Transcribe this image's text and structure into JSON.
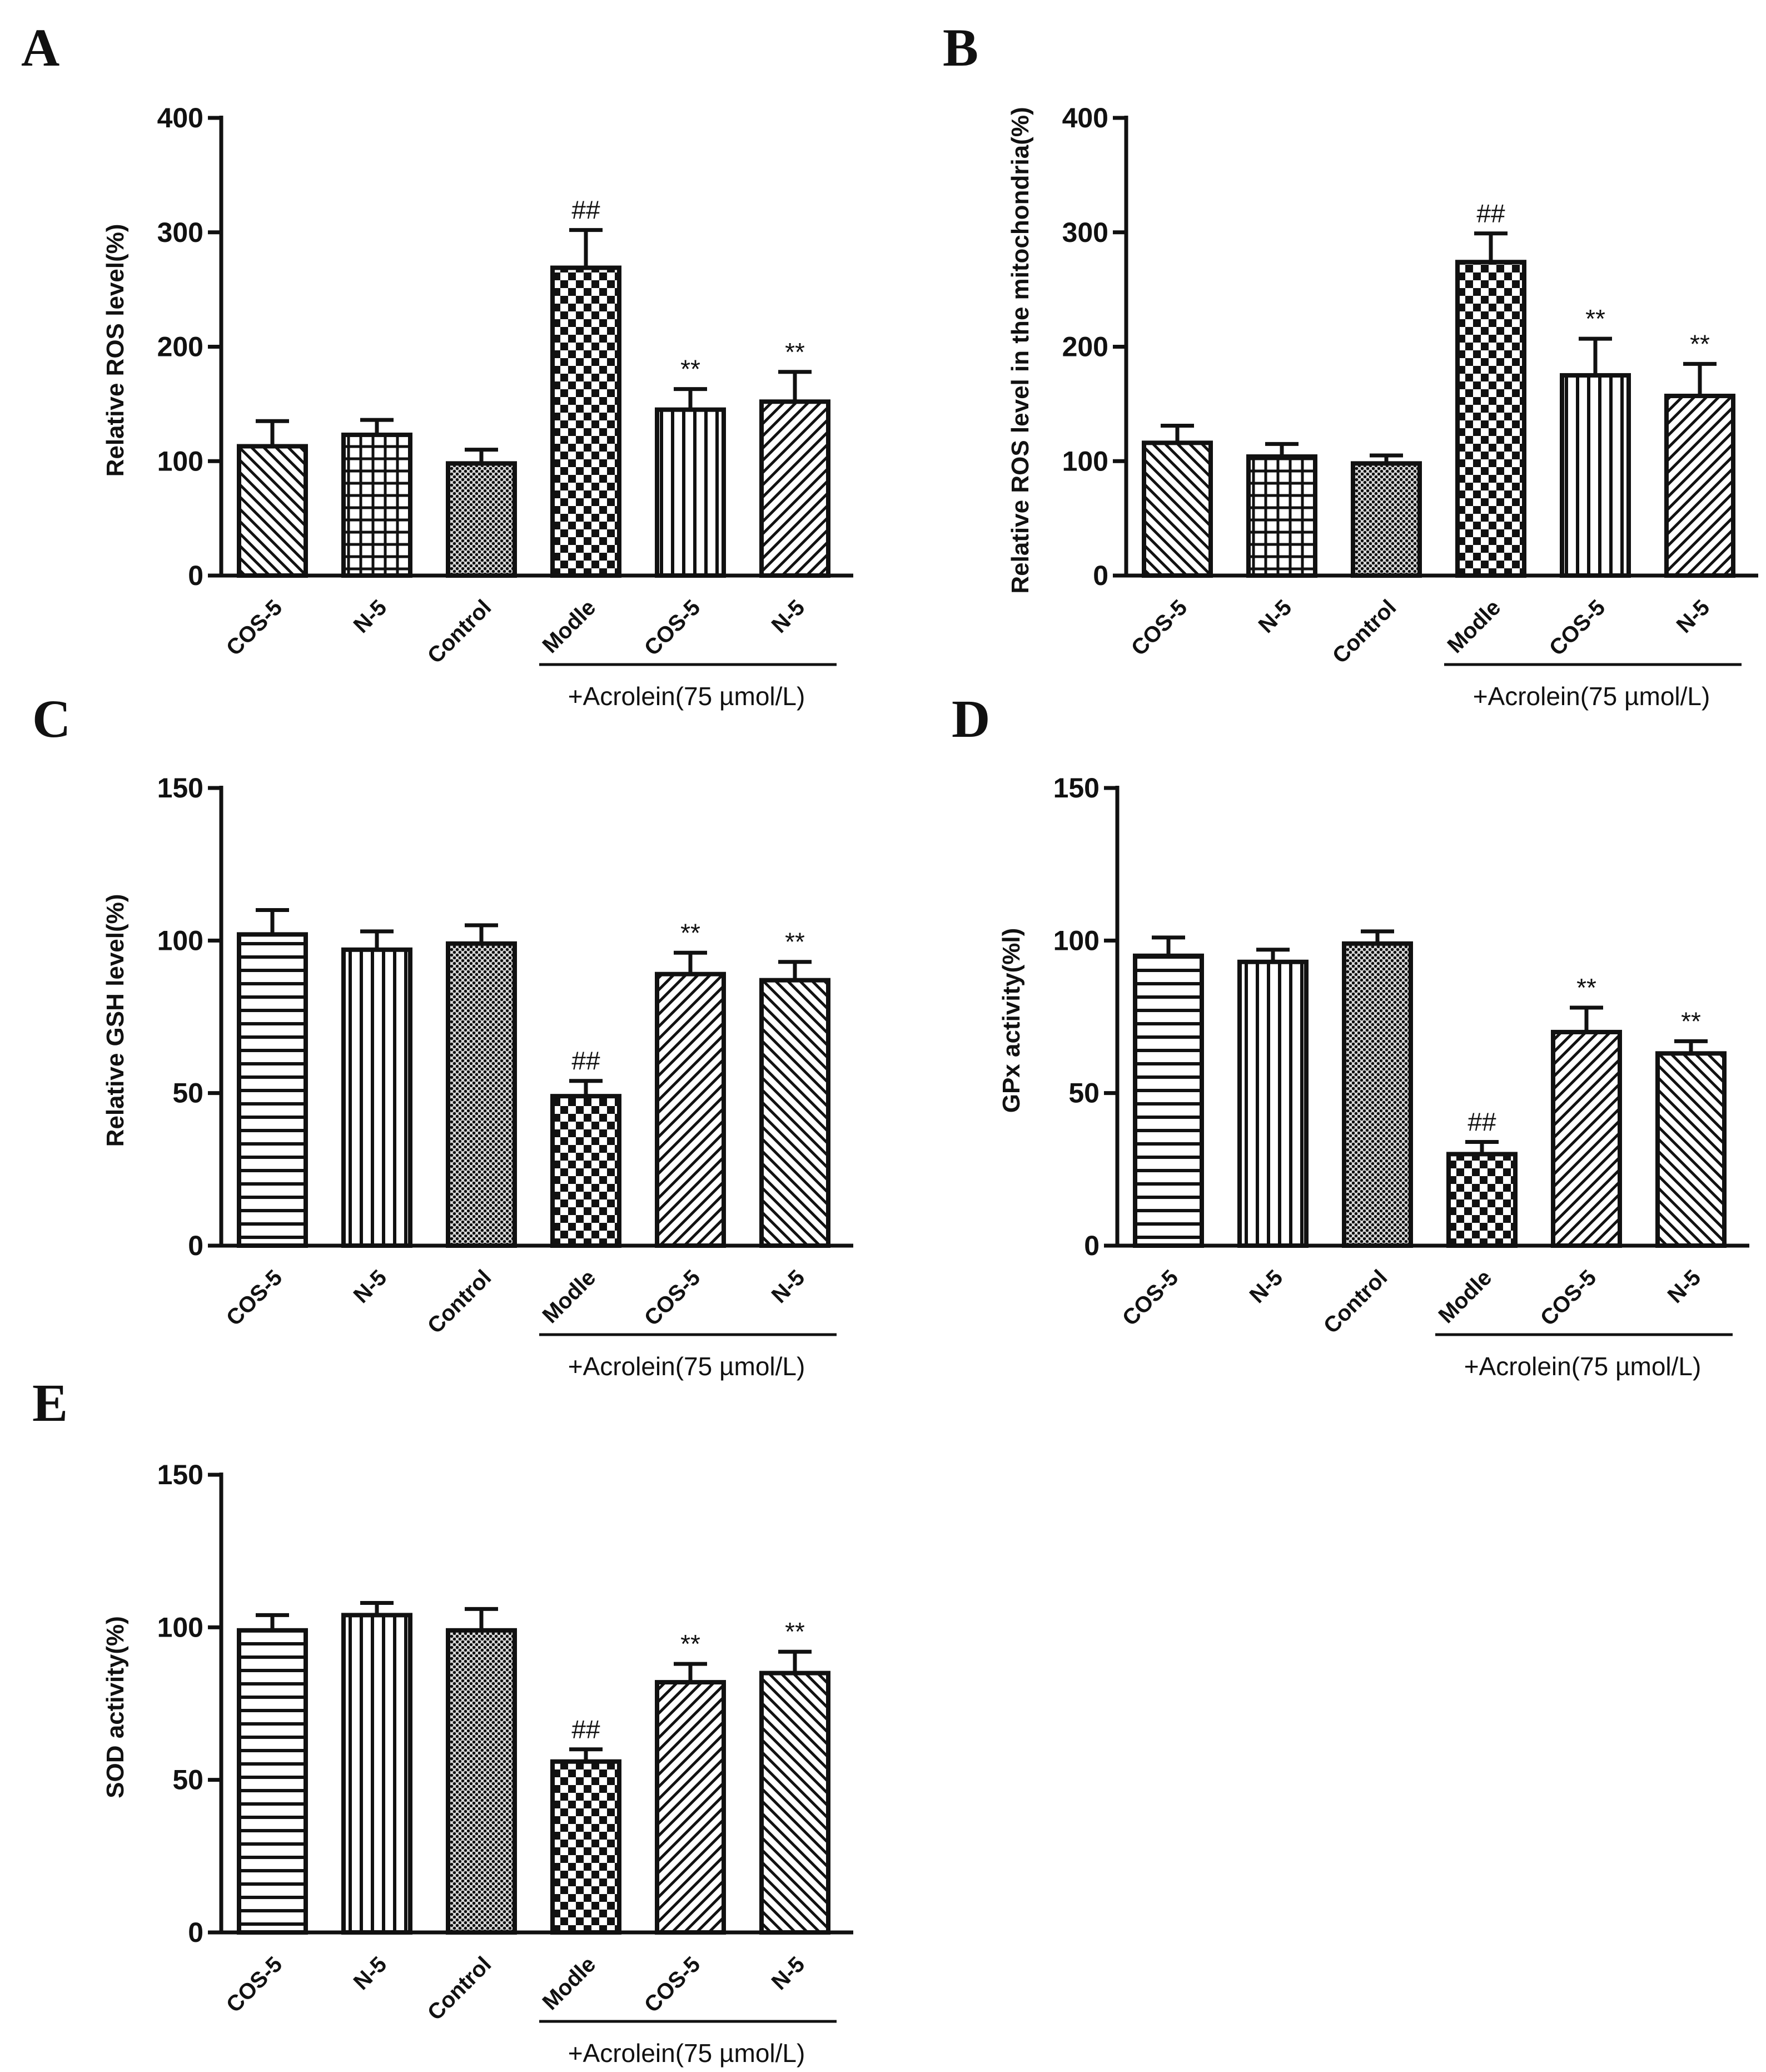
{
  "treatment_label": "+Acrolein(75 µmol/L)",
  "chart_data": [
    {
      "type": "bar",
      "panel": "A",
      "ylabel": "Relative ROS level(%)",
      "categories": [
        "COS-5",
        "N-5",
        "Control",
        "Modle",
        "COS-5",
        "N-5"
      ],
      "values": [
        113,
        123,
        98,
        269,
        145,
        152
      ],
      "errors": [
        22,
        13,
        12,
        33,
        18,
        26
      ],
      "significance": [
        "",
        "",
        "",
        "##",
        "**",
        "**"
      ],
      "patterns": [
        "diag-back",
        "grid",
        "dots",
        "checker",
        "vlines",
        "diag-fwd"
      ],
      "ylim": [
        0,
        400
      ],
      "yticks": [
        0,
        100,
        200,
        300,
        400
      ]
    },
    {
      "type": "bar",
      "panel": "B",
      "ylabel": "Relative ROS level in the mitochondria(%)",
      "categories": [
        "COS-5",
        "N-5",
        "Control",
        "Modle",
        "COS-5",
        "N-5"
      ],
      "values": [
        116,
        104,
        98,
        274,
        175,
        157
      ],
      "errors": [
        15,
        11,
        7,
        25,
        32,
        28
      ],
      "significance": [
        "",
        "",
        "",
        "##",
        "**",
        "**"
      ],
      "patterns": [
        "diag-back",
        "grid",
        "dots",
        "checker",
        "vlines",
        "diag-fwd"
      ],
      "ylim": [
        0,
        400
      ],
      "yticks": [
        0,
        100,
        200,
        300,
        400
      ]
    },
    {
      "type": "bar",
      "panel": "C",
      "ylabel": "Relative GSH level(%)",
      "categories": [
        "COS-5",
        "N-5",
        "Control",
        "Modle",
        "COS-5",
        "N-5"
      ],
      "values": [
        102,
        97,
        99,
        49,
        89,
        87
      ],
      "errors": [
        8,
        6,
        6,
        5,
        7,
        6
      ],
      "significance": [
        "",
        "",
        "",
        "##",
        "**",
        "**"
      ],
      "patterns": [
        "hlines",
        "vlines",
        "dots",
        "checker",
        "diag-fwd",
        "diag-back"
      ],
      "ylim": [
        0,
        150
      ],
      "yticks": [
        0,
        50,
        100,
        150
      ]
    },
    {
      "type": "bar",
      "panel": "D",
      "ylabel": "GPx activity(%l)",
      "categories": [
        "COS-5",
        "N-5",
        "Control",
        "Modle",
        "COS-5",
        "N-5"
      ],
      "values": [
        95,
        93,
        99,
        30,
        70,
        63
      ],
      "errors": [
        6,
        4,
        4,
        4,
        8,
        4
      ],
      "significance": [
        "",
        "",
        "",
        "##",
        "**",
        "**"
      ],
      "patterns": [
        "hlines",
        "vlines",
        "dots",
        "checker",
        "diag-fwd",
        "diag-back"
      ],
      "ylim": [
        0,
        150
      ],
      "yticks": [
        0,
        50,
        100,
        150
      ]
    },
    {
      "type": "bar",
      "panel": "E",
      "ylabel": "SOD activity(%)",
      "categories": [
        "COS-5",
        "N-5",
        "Control",
        "Modle",
        "COS-5",
        "N-5"
      ],
      "values": [
        99,
        104,
        99,
        56,
        82,
        85
      ],
      "errors": [
        5,
        4,
        7,
        4,
        6,
        7
      ],
      "significance": [
        "",
        "",
        "",
        "##",
        "**",
        "**"
      ],
      "patterns": [
        "hlines",
        "vlines",
        "dots",
        "checker",
        "diag-fwd",
        "diag-back"
      ],
      "ylim": [
        0,
        150
      ],
      "yticks": [
        0,
        50,
        100,
        150
      ]
    }
  ]
}
